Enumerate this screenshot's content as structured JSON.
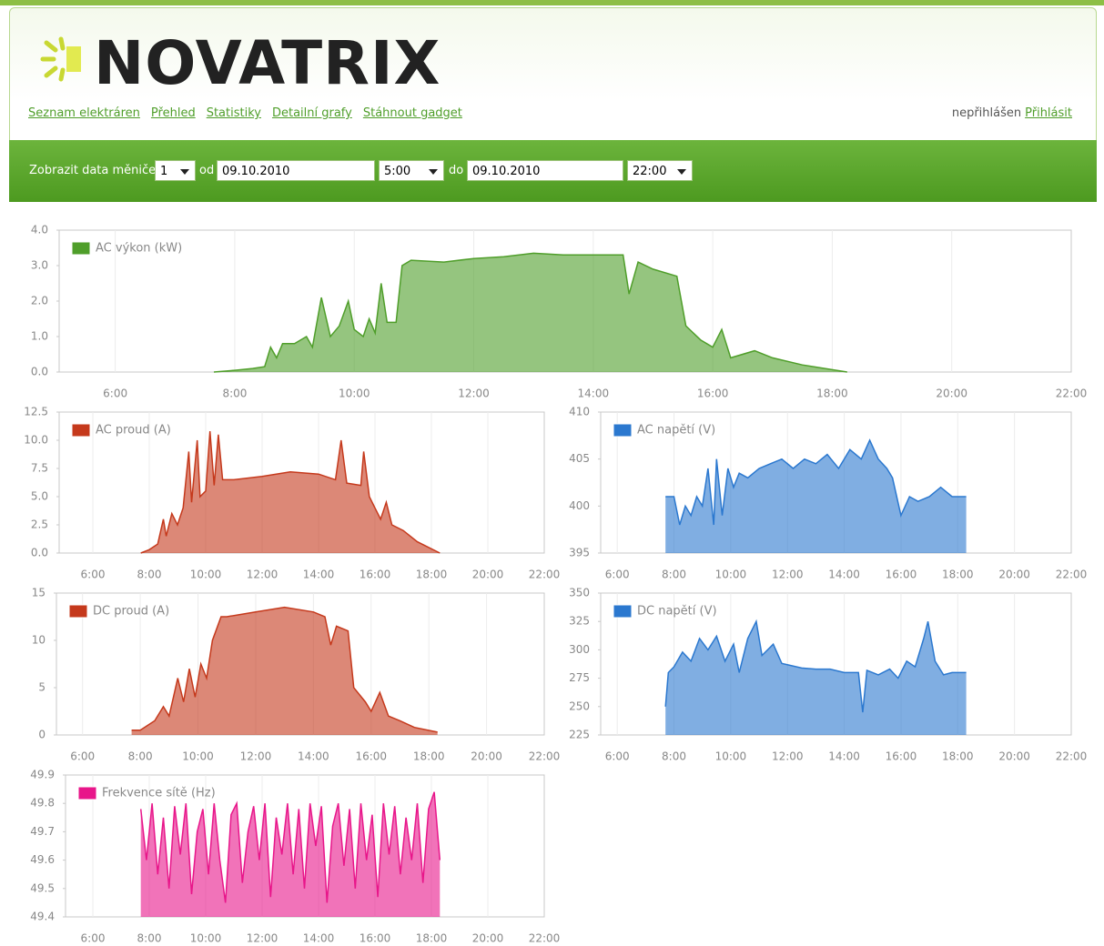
{
  "header": {
    "logo": "NOVATRIX",
    "nav": [
      "Seznam elektráren",
      "Přehled",
      "Statistiky",
      "Detailní grafy",
      "Stáhnout gadget"
    ],
    "login_status": "nepřihlášen",
    "login_link": "Přihlásit"
  },
  "filter": {
    "label": "Zobrazit data měniče",
    "inverter": "1",
    "from_label": "od",
    "date_from": "09.10.2010",
    "time_from": "5:00",
    "to_label": "do",
    "date_to": "09.10.2010",
    "time_to": "22:00"
  },
  "chart_data": [
    {
      "type": "area",
      "xlim": [
        5,
        22
      ],
      "ylim": [
        0,
        4
      ],
      "xticks": [
        {
          "value": 6,
          "label": "6:00"
        },
        {
          "value": 8,
          "label": "8:00"
        },
        {
          "value": 10,
          "label": "10:00"
        },
        {
          "value": 12,
          "label": "12:00"
        },
        {
          "value": 14,
          "label": "14:00"
        },
        {
          "value": 16,
          "label": "16:00"
        },
        {
          "value": 18,
          "label": "18:00"
        },
        {
          "value": 20,
          "label": "20:00"
        },
        {
          "value": 22,
          "label": "22:00"
        }
      ],
      "yticks": [
        {
          "value": 0,
          "label": "0.0"
        },
        {
          "value": 1,
          "label": "1.0"
        },
        {
          "value": 2,
          "label": "2.0"
        },
        {
          "value": 3,
          "label": "3.0"
        },
        {
          "value": 4,
          "label": "4.0"
        }
      ],
      "grid": true,
      "x": [
        7.65,
        8.0,
        8.3,
        8.5,
        8.6,
        8.7,
        8.8,
        9.0,
        9.2,
        9.3,
        9.45,
        9.6,
        9.75,
        9.9,
        10.0,
        10.15,
        10.25,
        10.35,
        10.45,
        10.55,
        10.7,
        10.8,
        10.95,
        11.5,
        12.0,
        12.5,
        13.0,
        13.5,
        14.0,
        14.5,
        14.6,
        14.75,
        15.0,
        15.4,
        15.55,
        15.8,
        16.0,
        16.15,
        16.3,
        16.7,
        17.0,
        17.5,
        18.25
      ],
      "series": [
        {
          "name": "AC výkon (kW)",
          "color": "#4f9e2a",
          "values": [
            0,
            0.05,
            0.1,
            0.15,
            0.7,
            0.4,
            0.8,
            0.8,
            1.0,
            0.7,
            2.1,
            1.0,
            1.3,
            2.0,
            1.2,
            1.0,
            1.5,
            1.1,
            2.5,
            1.4,
            1.4,
            3.0,
            3.15,
            3.1,
            3.2,
            3.25,
            3.35,
            3.3,
            3.3,
            3.3,
            2.2,
            3.1,
            2.9,
            2.7,
            1.3,
            0.9,
            0.7,
            1.2,
            0.4,
            0.6,
            0.4,
            0.2,
            0
          ]
        }
      ]
    },
    {
      "type": "area",
      "xlim": [
        5,
        22
      ],
      "ylim": [
        0,
        12.5
      ],
      "xticks": [
        {
          "value": 6,
          "label": "6:00"
        },
        {
          "value": 8,
          "label": "8:00"
        },
        {
          "value": 10,
          "label": "10:00"
        },
        {
          "value": 12,
          "label": "12:00"
        },
        {
          "value": 14,
          "label": "14:00"
        },
        {
          "value": 16,
          "label": "16:00"
        },
        {
          "value": 18,
          "label": "18:00"
        },
        {
          "value": 20,
          "label": "20:00"
        },
        {
          "value": 22,
          "label": "22:00"
        }
      ],
      "yticks": [
        {
          "value": 0,
          "label": "0.0"
        },
        2.5,
        {
          "value": 5,
          "label": "5.0"
        },
        7.5,
        {
          "value": 10,
          "label": "10.0"
        },
        12.5
      ],
      "grid": true,
      "x": [
        7.7,
        8.0,
        8.3,
        8.5,
        8.6,
        8.8,
        9.0,
        9.2,
        9.4,
        9.5,
        9.7,
        9.8,
        10.0,
        10.15,
        10.3,
        10.45,
        10.6,
        11.0,
        12.0,
        13.0,
        14.0,
        14.6,
        14.8,
        15.0,
        15.5,
        15.6,
        15.8,
        16.0,
        16.2,
        16.4,
        16.6,
        17.0,
        17.5,
        18.3
      ],
      "series": [
        {
          "name": "AC proud (A)",
          "color": "#c5391c",
          "values": [
            0,
            0.3,
            0.8,
            3.0,
            1.5,
            3.5,
            2.5,
            4.0,
            9.0,
            4.5,
            10.0,
            5.0,
            5.5,
            10.8,
            6.0,
            10.5,
            6.5,
            6.5,
            6.8,
            7.2,
            7.0,
            6.5,
            10.0,
            6.2,
            6.0,
            9.0,
            5.0,
            4.0,
            3.0,
            4.5,
            2.5,
            2.0,
            1.0,
            0
          ]
        }
      ]
    },
    {
      "type": "area",
      "xlim": [
        5,
        22
      ],
      "ylim": [
        395,
        410
      ],
      "xticks": [
        {
          "value": 6,
          "label": "6:00"
        },
        {
          "value": 8,
          "label": "8:00"
        },
        {
          "value": 10,
          "label": "10:00"
        },
        {
          "value": 12,
          "label": "12:00"
        },
        {
          "value": 14,
          "label": "14:00"
        },
        {
          "value": 16,
          "label": "16:00"
        },
        {
          "value": 18,
          "label": "18:00"
        },
        {
          "value": 20,
          "label": "20:00"
        },
        {
          "value": 22,
          "label": "22:00"
        }
      ],
      "yticks": [
        395,
        400,
        405,
        410
      ],
      "grid": true,
      "x": [
        7.7,
        8.0,
        8.2,
        8.4,
        8.6,
        8.8,
        9.0,
        9.2,
        9.4,
        9.5,
        9.7,
        9.9,
        10.1,
        10.3,
        10.6,
        11.0,
        11.4,
        11.8,
        12.2,
        12.6,
        13.0,
        13.4,
        13.8,
        14.2,
        14.6,
        14.9,
        15.2,
        15.5,
        15.7,
        16.0,
        16.3,
        16.6,
        17.0,
        17.4,
        17.8,
        18.3
      ],
      "series": [
        {
          "name": "AC napětí (V)",
          "color": "#2b78cf",
          "values": [
            401,
            401,
            398,
            400,
            399,
            401,
            400,
            404,
            398,
            405,
            399,
            404,
            402,
            403.5,
            403,
            404,
            404.5,
            405,
            404,
            405,
            404.5,
            405.5,
            404,
            406,
            405,
            407,
            405,
            404,
            403,
            399,
            401,
            400.5,
            401,
            402,
            401,
            401
          ]
        }
      ]
    },
    {
      "type": "area",
      "xlim": [
        5,
        22
      ],
      "ylim": [
        0,
        15
      ],
      "xticks": [
        {
          "value": 6,
          "label": "6:00"
        },
        {
          "value": 8,
          "label": "8:00"
        },
        {
          "value": 10,
          "label": "10:00"
        },
        {
          "value": 12,
          "label": "12:00"
        },
        {
          "value": 14,
          "label": "14:00"
        },
        {
          "value": 16,
          "label": "16:00"
        },
        {
          "value": 18,
          "label": "18:00"
        },
        {
          "value": 20,
          "label": "20:00"
        },
        {
          "value": 22,
          "label": "22:00"
        }
      ],
      "yticks": [
        0,
        5,
        10,
        15
      ],
      "grid": true,
      "x": [
        7.7,
        8.0,
        8.5,
        8.8,
        9.0,
        9.3,
        9.5,
        9.7,
        9.9,
        10.1,
        10.3,
        10.5,
        10.8,
        11.0,
        12.0,
        13.0,
        14.0,
        14.4,
        14.6,
        14.8,
        15.2,
        15.4,
        15.8,
        16.0,
        16.3,
        16.6,
        17.0,
        17.5,
        18.3
      ],
      "series": [
        {
          "name": "DC proud (A)",
          "color": "#c5391c",
          "values": [
            0.5,
            0.5,
            1.5,
            3.0,
            2.0,
            6.0,
            3.5,
            7.0,
            4.0,
            7.5,
            6.0,
            10.0,
            12.5,
            12.5,
            13.0,
            13.5,
            13.0,
            12.5,
            9.5,
            11.5,
            11.0,
            5.0,
            3.5,
            2.5,
            4.5,
            2.0,
            1.5,
            0.8,
            0.3
          ]
        }
      ]
    },
    {
      "type": "area",
      "xlim": [
        5,
        22
      ],
      "ylim": [
        225,
        350
      ],
      "xticks": [
        {
          "value": 6,
          "label": "6:00"
        },
        {
          "value": 8,
          "label": "8:00"
        },
        {
          "value": 10,
          "label": "10:00"
        },
        {
          "value": 12,
          "label": "12:00"
        },
        {
          "value": 14,
          "label": "14:00"
        },
        {
          "value": 16,
          "label": "16:00"
        },
        {
          "value": 18,
          "label": "18:00"
        },
        {
          "value": 20,
          "label": "20:00"
        },
        {
          "value": 22,
          "label": "22:00"
        }
      ],
      "yticks": [
        225,
        250,
        275,
        300,
        325,
        350
      ],
      "grid": true,
      "x": [
        7.7,
        7.8,
        8.0,
        8.3,
        8.6,
        8.9,
        9.2,
        9.5,
        9.8,
        10.1,
        10.3,
        10.6,
        10.9,
        11.1,
        11.5,
        11.8,
        12.5,
        13.0,
        13.5,
        14.0,
        14.5,
        14.65,
        14.8,
        15.2,
        15.6,
        15.9,
        16.2,
        16.5,
        16.8,
        16.95,
        17.2,
        17.5,
        17.8,
        18.3
      ],
      "series": [
        {
          "name": "DC napětí (V)",
          "color": "#2b78cf",
          "values": [
            250,
            280,
            285,
            298,
            290,
            310,
            300,
            312,
            290,
            305,
            280,
            310,
            325,
            295,
            305,
            288,
            284,
            283,
            283,
            280,
            280,
            245,
            282,
            278,
            283,
            275,
            290,
            285,
            310,
            325,
            290,
            278,
            280,
            280
          ]
        }
      ]
    },
    {
      "type": "area",
      "xlim": [
        5,
        22
      ],
      "ylim": [
        49.4,
        49.9
      ],
      "xticks": [
        {
          "value": 6,
          "label": "6:00"
        },
        {
          "value": 8,
          "label": "8:00"
        },
        {
          "value": 10,
          "label": "10:00"
        },
        {
          "value": 12,
          "label": "12:00"
        },
        {
          "value": 14,
          "label": "14:00"
        },
        {
          "value": 16,
          "label": "16:00"
        },
        {
          "value": 18,
          "label": "18:00"
        },
        {
          "value": 20,
          "label": "20:00"
        },
        {
          "value": 22,
          "label": "22:00"
        }
      ],
      "yticks": [
        49.4,
        49.5,
        49.6,
        49.7,
        49.8,
        49.9
      ],
      "grid": true,
      "x": [
        7.7,
        7.9,
        8.1,
        8.3,
        8.5,
        8.7,
        8.9,
        9.1,
        9.3,
        9.5,
        9.7,
        9.9,
        10.1,
        10.3,
        10.5,
        10.7,
        10.9,
        11.1,
        11.3,
        11.5,
        11.7,
        11.9,
        12.1,
        12.3,
        12.5,
        12.7,
        12.9,
        13.1,
        13.3,
        13.5,
        13.7,
        13.9,
        14.1,
        14.3,
        14.5,
        14.7,
        14.9,
        15.1,
        15.3,
        15.5,
        15.7,
        15.9,
        16.1,
        16.3,
        16.5,
        16.7,
        16.9,
        17.1,
        17.3,
        17.5,
        17.7,
        17.9,
        18.1,
        18.3
      ],
      "series": [
        {
          "name": "Frekvence sítě (Hz)",
          "color": "#e8168a",
          "values": [
            49.78,
            49.6,
            49.8,
            49.55,
            49.75,
            49.5,
            49.79,
            49.62,
            49.8,
            49.48,
            49.7,
            49.78,
            49.55,
            49.8,
            49.6,
            49.45,
            49.76,
            49.8,
            49.52,
            49.7,
            49.79,
            49.6,
            49.8,
            49.47,
            49.75,
            49.62,
            49.8,
            49.55,
            49.78,
            49.5,
            49.8,
            49.65,
            49.79,
            49.45,
            49.72,
            49.8,
            49.58,
            49.78,
            49.5,
            49.8,
            49.6,
            49.76,
            49.47,
            49.8,
            49.62,
            49.79,
            49.55,
            49.75,
            49.6,
            49.8,
            49.52,
            49.78,
            49.84,
            49.6
          ]
        }
      ]
    }
  ]
}
